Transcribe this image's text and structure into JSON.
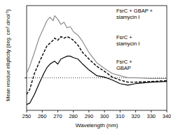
{
  "chart_data": {
    "type": "line",
    "x_label": "Wavelength (nm)",
    "y_label": "Mean residue ellipticity (deg. cm².dmol⁻¹)",
    "x": [
      250,
      252,
      255,
      258,
      261,
      263,
      265,
      267,
      268,
      270,
      272,
      274,
      276,
      278,
      280,
      283,
      286,
      290,
      295,
      300,
      305,
      310,
      315,
      320,
      330,
      340
    ],
    "series": [
      {
        "name": "FsrC + GBAP + siamycin I",
        "color": "#8c8c8c",
        "line_style": "solid",
        "values": [
          6,
          16,
          35,
          55,
          69,
          79,
          84,
          79,
          86,
          81,
          74,
          77,
          69,
          71,
          64,
          59,
          50,
          35,
          21,
          13,
          6,
          3,
          0,
          0,
          -1,
          -1
        ]
      },
      {
        "name": "FsrC + siamycin I",
        "color": "#000000",
        "line_style": "dashed",
        "values": [
          -23,
          -16,
          6,
          21,
          35,
          44,
          48,
          52,
          55,
          52,
          57,
          55,
          57,
          55,
          52,
          45,
          35,
          26,
          16,
          9,
          1,
          -3,
          -6,
          -6,
          -5,
          -4
        ]
      },
      {
        "name": "FsrC + GBAP",
        "color": "#000000",
        "line_style": "solid",
        "values": [
          -37,
          -35,
          -23,
          -8,
          6,
          14,
          19,
          22,
          23,
          19,
          26,
          28,
          30,
          30,
          28,
          26,
          19,
          11,
          3,
          1,
          -3,
          -8,
          -10,
          -8,
          -6,
          -5
        ]
      }
    ],
    "xlim": [
      250,
      340
    ],
    "xticks": [
      250,
      260,
      270,
      280,
      290,
      300,
      310,
      320,
      330,
      340
    ],
    "ylim": [
      -45,
      100
    ],
    "yticks": [
      0
    ],
    "grid": true,
    "tick_labels": "x"
  }
}
